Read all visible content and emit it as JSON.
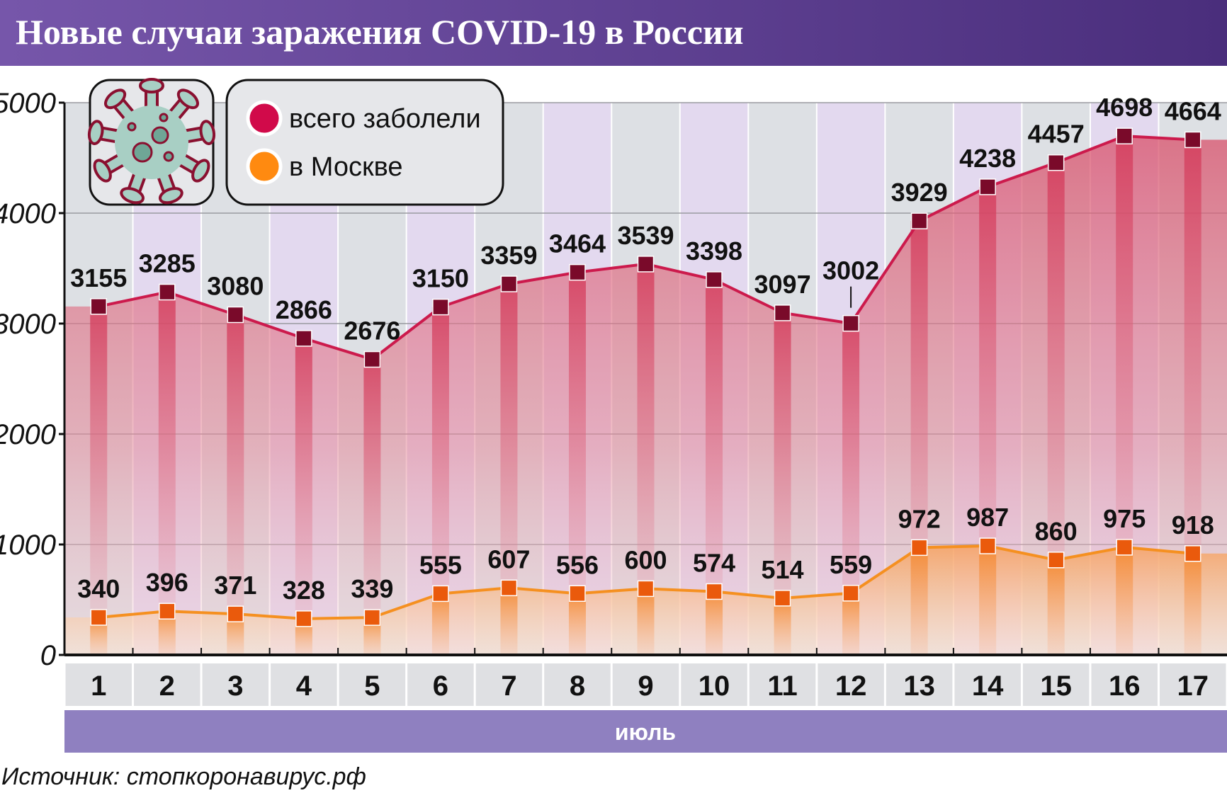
{
  "title": "Новые случаи заражения COVID-19 в России",
  "legend": {
    "icon": "virus-icon",
    "items": [
      {
        "label": "всего заболели",
        "color": "#d10a4a"
      },
      {
        "label": "в Москве",
        "color": "#ff8a10"
      }
    ]
  },
  "month_label": "июль",
  "source": "Источник: стопкоронавирус.рф",
  "colors": {
    "title_bar": "#6a4a9e",
    "month_bar": "#8f80c0",
    "column_grey": "#dde0e4",
    "column_lavender": "#e3d9ef",
    "russia_line": "#cc1a4c",
    "russia_marker": "#7a0a2a",
    "moscow_line": "#f59020",
    "moscow_marker": "#ea5a0c"
  },
  "chart_data": {
    "type": "line",
    "title": "Новые случаи заражения COVID-19 в России",
    "xlabel": "июль",
    "ylabel": "",
    "ylim": [
      0,
      5000
    ],
    "yticks": [
      0,
      1000,
      2000,
      3000,
      4000,
      5000
    ],
    "grid": true,
    "legend_position": "top-left",
    "categories": [
      "1",
      "2",
      "3",
      "4",
      "5",
      "6",
      "7",
      "8",
      "9",
      "10",
      "11",
      "12",
      "13",
      "14",
      "15",
      "16",
      "17"
    ],
    "series": [
      {
        "name": "всего заболели",
        "values": [
          3155,
          3285,
          3080,
          2866,
          2676,
          3150,
          3359,
          3464,
          3539,
          3398,
          3097,
          3002,
          3929,
          4238,
          4457,
          4698,
          4664
        ]
      },
      {
        "name": "в Москве",
        "values": [
          340,
          396,
          371,
          328,
          339,
          555,
          607,
          556,
          600,
          574,
          514,
          559,
          972,
          987,
          860,
          975,
          918
        ]
      }
    ]
  }
}
